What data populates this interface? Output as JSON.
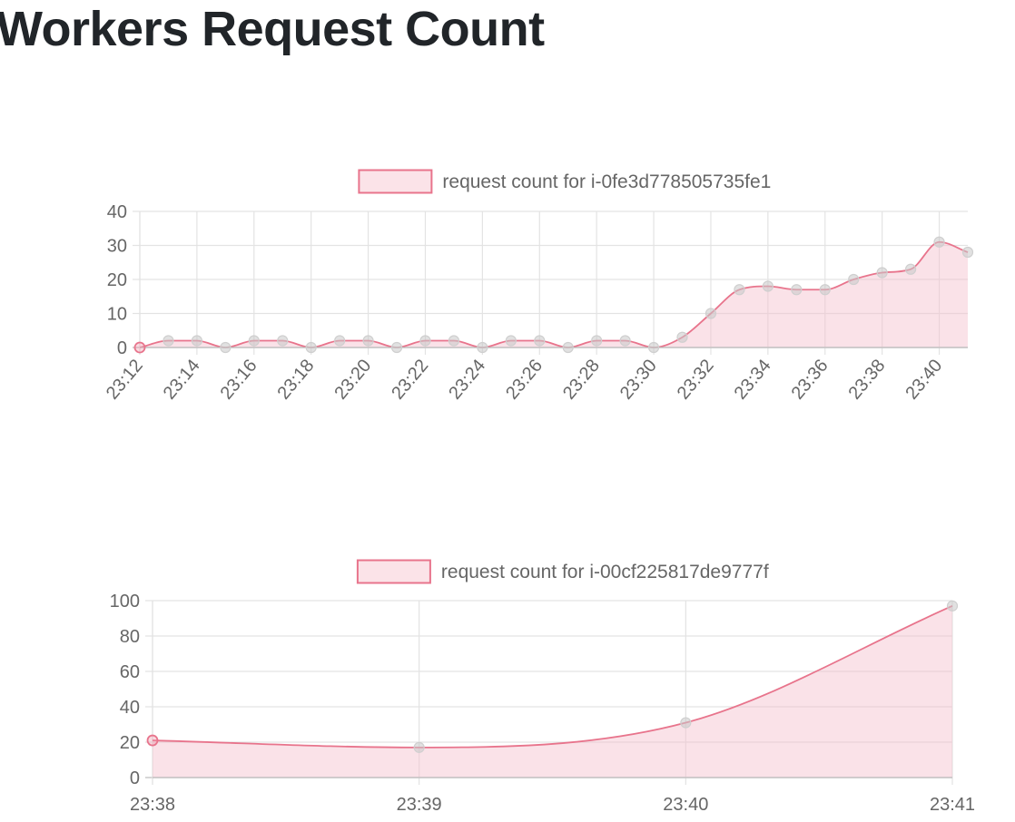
{
  "page": {
    "title": "Workers Request Count"
  },
  "colors": {
    "line": "#e8748c",
    "fill": "rgba(245, 190, 203, 0.45)",
    "legend_fill": "#fbe3e8",
    "grid": "#e3e3e3",
    "axis_zero": "#bdbdbd",
    "point_fill": "rgba(200,200,200,0.55)",
    "point_stroke": "#cfcfcf",
    "tick_text": "#666666"
  },
  "chart_data": [
    {
      "type": "area",
      "legend": "request count for i-0fe3d778505735fe1",
      "x": [
        "23:12",
        "23:13",
        "23:14",
        "23:15",
        "23:16",
        "23:17",
        "23:18",
        "23:19",
        "23:20",
        "23:21",
        "23:22",
        "23:23",
        "23:24",
        "23:25",
        "23:26",
        "23:27",
        "23:28",
        "23:29",
        "23:30",
        "23:31",
        "23:32",
        "23:33",
        "23:34",
        "23:35",
        "23:36",
        "23:37",
        "23:38",
        "23:39",
        "23:40",
        "23:41"
      ],
      "tick_labels": [
        "23:12",
        "23:14",
        "23:16",
        "23:18",
        "23:20",
        "23:22",
        "23:24",
        "23:26",
        "23:28",
        "23:30",
        "23:32",
        "23:34",
        "23:36",
        "23:38",
        "23:40"
      ],
      "values": [
        0,
        2,
        2,
        0,
        2,
        2,
        0,
        2,
        2,
        0,
        2,
        2,
        0,
        2,
        2,
        0,
        2,
        2,
        0,
        3,
        10,
        17,
        18,
        17,
        17,
        20,
        22,
        23,
        31,
        28
      ],
      "ylim": [
        0,
        40
      ],
      "yticks": [
        0,
        10,
        20,
        30,
        40
      ],
      "grid": true,
      "legend_position": "top"
    },
    {
      "type": "area",
      "legend": "request count for i-00cf225817de9777f",
      "x": [
        "23:38",
        "23:39",
        "23:40",
        "23:41"
      ],
      "tick_labels": [
        "23:38",
        "23:39",
        "23:40",
        "23:41"
      ],
      "values": [
        21,
        17,
        31,
        97
      ],
      "ylim": [
        0,
        100
      ],
      "yticks": [
        0,
        20,
        40,
        60,
        80,
        100
      ],
      "grid": true,
      "legend_position": "top"
    }
  ]
}
